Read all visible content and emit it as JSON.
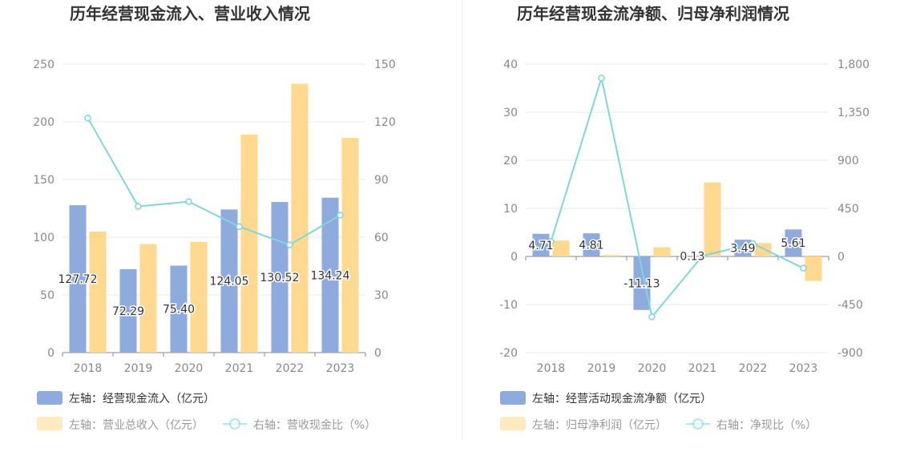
{
  "colors": {
    "bar1": "#8FAADC",
    "bar2": "#FFD98F",
    "line": "#80D6DC",
    "grid": "#E6E8F0",
    "axis": "#888888"
  },
  "chart_data": [
    {
      "type": "bar",
      "title": "历年经营现金流入、营业收入情况",
      "categories": [
        "2018",
        "2019",
        "2020",
        "2021",
        "2022",
        "2023"
      ],
      "y_left": {
        "ylim": [
          0,
          250
        ],
        "ticks": [
          "0",
          "50",
          "100",
          "150",
          "200",
          "250"
        ]
      },
      "y_right": {
        "ylim": [
          0,
          150
        ],
        "ticks": [
          "0",
          "30",
          "60",
          "90",
          "120",
          "150"
        ]
      },
      "series": [
        {
          "name": "左轴：经营现金流入（亿元）",
          "type": "bar",
          "axis": "left",
          "values": [
            127.72,
            72.29,
            75.4,
            124.05,
            130.52,
            134.24
          ],
          "labels": [
            "127.72",
            "72.29",
            "75.40",
            "124.05",
            "130.52",
            "134.24"
          ]
        },
        {
          "name": "左轴：营业总收入（亿元）",
          "type": "bar",
          "axis": "left",
          "values": [
            105,
            94,
            96,
            189,
            233,
            186
          ]
        },
        {
          "name": "右轴：营收现金比（%）",
          "type": "line",
          "axis": "right",
          "values": [
            122,
            76,
            78.5,
            65.5,
            56,
            71.5
          ]
        }
      ]
    },
    {
      "type": "bar",
      "title": "历年经营现金流净额、归母净利润情况",
      "categories": [
        "2018",
        "2019",
        "2020",
        "2021",
        "2022",
        "2023"
      ],
      "y_left": {
        "ylim": [
          -20,
          40
        ],
        "ticks": [
          "-20",
          "-10",
          "0",
          "10",
          "20",
          "30",
          "40"
        ]
      },
      "y_right": {
        "ylim": [
          -900,
          1800
        ],
        "ticks": [
          "-900",
          "-450",
          "0",
          "450",
          "900",
          "1,350",
          "1,800"
        ]
      },
      "series": [
        {
          "name": "左轴：经营活动现金流净额（亿元）",
          "type": "bar",
          "axis": "left",
          "values": [
            4.71,
            4.81,
            -11.13,
            0.13,
            3.49,
            5.61
          ],
          "labels": [
            "4.71",
            "4.81",
            "-11.13",
            "0.13",
            "3.49",
            "5.61"
          ]
        },
        {
          "name": "左轴：归母净利润（亿元）",
          "type": "bar",
          "axis": "left",
          "values": [
            3.3,
            0.3,
            1.9,
            15.4,
            2.8,
            -5.1
          ]
        },
        {
          "name": "右轴：净现比（%）",
          "type": "line",
          "axis": "right",
          "values": [
            140,
            1670,
            -565,
            5,
            120,
            -110
          ]
        }
      ]
    }
  ]
}
